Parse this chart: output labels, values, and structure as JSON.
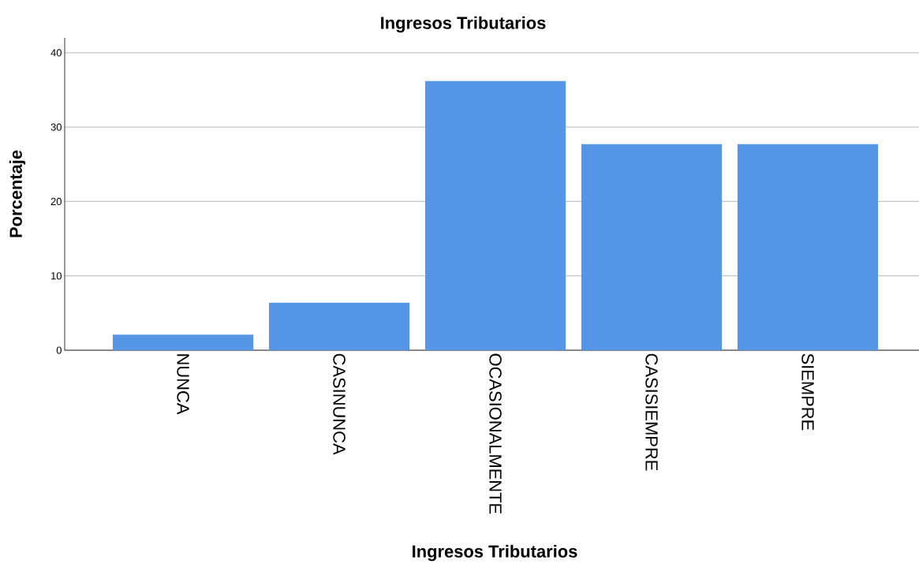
{
  "chart_data": {
    "type": "bar",
    "title": "Ingresos Tributarios",
    "xlabel": "Ingresos Tributarios",
    "ylabel": "Porcentaje",
    "categories": [
      "NUNCA",
      "CASINUNCA",
      "OCASIONALMENTE",
      "CASISIEMPRE",
      "SIEMPRE"
    ],
    "values": [
      2.1,
      6.4,
      36.2,
      27.7,
      27.7
    ],
    "color": "#5596e6",
    "ylim": [
      0,
      42
    ],
    "yticks": [
      0,
      10,
      20,
      30,
      40
    ],
    "grid": "y"
  }
}
